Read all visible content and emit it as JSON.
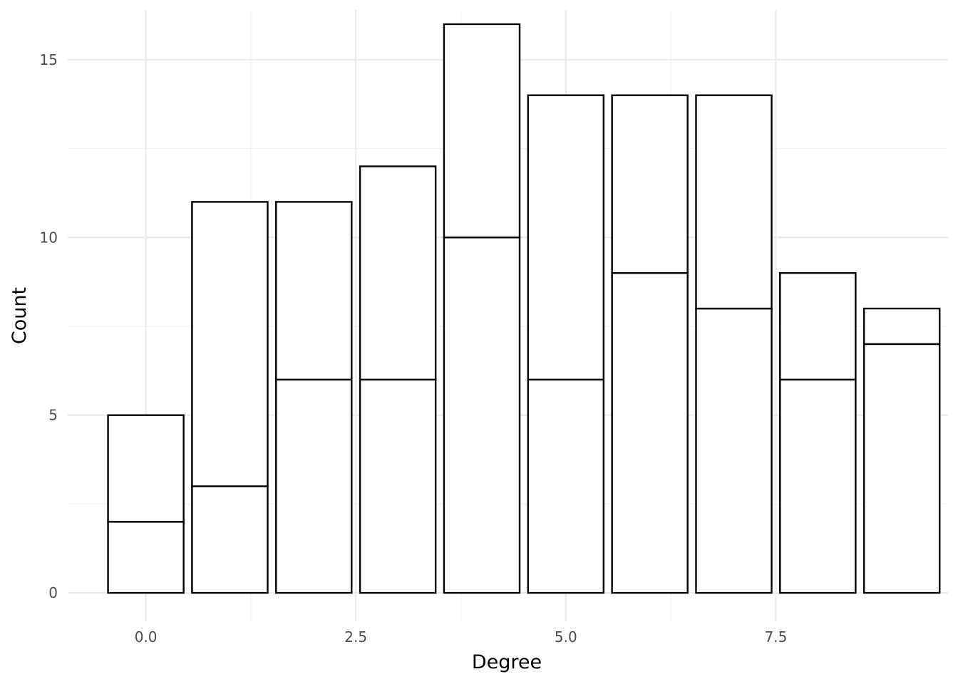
{
  "chart_data": {
    "type": "bar",
    "stacked": true,
    "title": "",
    "xlabel": "Degree",
    "ylabel": "Count",
    "x": [
      0,
      1,
      2,
      3,
      4,
      5,
      6,
      7,
      8,
      9
    ],
    "series": [
      {
        "values": [
          2,
          3,
          6,
          6,
          10,
          6,
          9,
          8,
          6,
          7
        ]
      },
      {
        "values": [
          3,
          8,
          5,
          6,
          6,
          8,
          5,
          6,
          3,
          1
        ]
      }
    ],
    "totals": [
      5,
      11,
      11,
      12,
      16,
      14,
      14,
      14,
      9,
      8
    ],
    "xlim": [
      -0.93,
      9.55
    ],
    "ylim": [
      -0.8,
      16.4
    ],
    "x_ticks": [
      0.0,
      2.5,
      5.0,
      7.5
    ],
    "x_tick_labels": [
      "0.0",
      "2.5",
      "5.0",
      "7.5"
    ],
    "y_ticks": [
      0,
      5,
      10,
      15
    ],
    "y_tick_labels": [
      "0",
      "5",
      "10",
      "15"
    ],
    "grid": true,
    "legend": "none",
    "colors": {
      "fill": "#ffffff",
      "outline": "#000000",
      "grid": "#ebebeb",
      "tick_text": "#4d4d4d"
    }
  }
}
